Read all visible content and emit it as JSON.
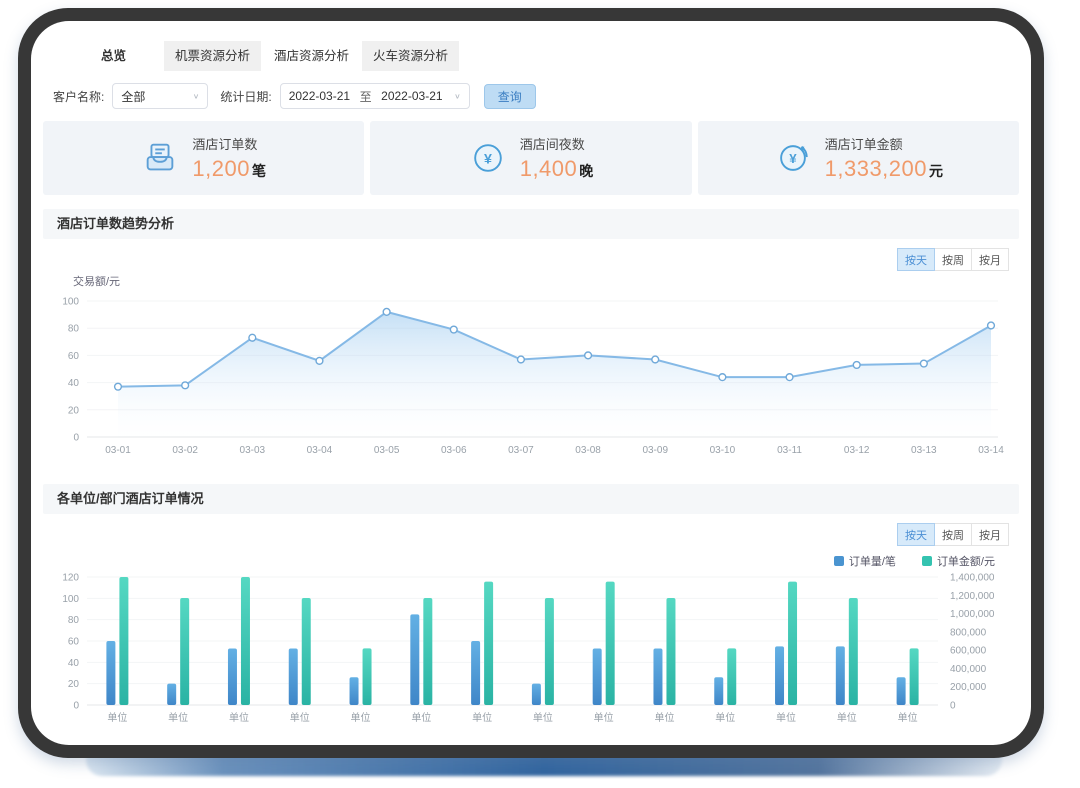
{
  "colors": {
    "accent_blue": "#4a94d0",
    "accent_teal": "#34c3b0",
    "value_orange": "#f09a6a",
    "button_blue_bg": "#bedcf4",
    "button_blue_text": "#3b7ec2",
    "toggle_active_bg": "#d7eafa",
    "card_bg": "#f1f4f8",
    "section_header_bg": "#f5f7f9",
    "frame_dark": "#373737"
  },
  "tabs": [
    {
      "label": "总览",
      "active": false
    },
    {
      "label": "机票资源分析",
      "active": false
    },
    {
      "label": "酒店资源分析",
      "active": true
    },
    {
      "label": "火车资源分析",
      "active": false
    }
  ],
  "filters": {
    "customer_label": "客户名称:",
    "customer_value": "全部",
    "date_label": "统计日期:",
    "date_start": "2022-03-21",
    "date_to": "至",
    "date_end": "2022-03-21",
    "search_button": "查询"
  },
  "stats": [
    {
      "icon": "order-book-icon",
      "title": "酒店订单数",
      "value": "1,200",
      "unit": "笔"
    },
    {
      "icon": "yen-circle-icon",
      "title": "酒店间夜数",
      "value": "1,400",
      "unit": "晚"
    },
    {
      "icon": "yen-refresh-icon",
      "title": "酒店订单金额",
      "value": "1,333,200",
      "unit": "元"
    }
  ],
  "sections": [
    {
      "title": "酒店订单数趋势分析",
      "toggles": [
        "按天",
        "按周",
        "按月"
      ],
      "active_toggle": "按天"
    },
    {
      "title": "各单位/部门酒店订单情况",
      "toggles": [
        "按天",
        "按周",
        "按月"
      ],
      "active_toggle": "按天",
      "legend": [
        {
          "label": "订单量/笔",
          "color": "#4a94d0"
        },
        {
          "label": "订单金额/元",
          "color": "#34c3b0"
        }
      ]
    }
  ],
  "chart_data": [
    {
      "type": "area",
      "title": "酒店订单数趋势分析",
      "ylabel": "交易额/元",
      "x": [
        "03-01",
        "03-02",
        "03-03",
        "03-04",
        "03-05",
        "03-06",
        "03-07",
        "03-08",
        "03-09",
        "03-10",
        "03-11",
        "03-12",
        "03-13",
        "03-14"
      ],
      "values": [
        37,
        38,
        73,
        56,
        92,
        79,
        57,
        60,
        57,
        44,
        44,
        53,
        54,
        82
      ],
      "ylim": [
        0,
        100
      ],
      "yticks": [
        0,
        20,
        40,
        60,
        80,
        100
      ],
      "grid": true,
      "line_color": "#85b9e6",
      "point_stroke": "#6fa8d8",
      "area_top": "rgba(150,198,238,0.55)",
      "area_bottom": "rgba(240,248,255,0.02)"
    },
    {
      "type": "bar",
      "title": "各单位/部门酒店订单情况",
      "categories": [
        "单位",
        "单位",
        "单位",
        "单位",
        "单位",
        "单位",
        "单位",
        "单位",
        "单位",
        "单位",
        "单位",
        "单位",
        "单位",
        "单位"
      ],
      "series": [
        {
          "name": "订单量/笔",
          "axis": "left",
          "color_top": "#63b0e4",
          "color_bottom": "#3f86c8",
          "values": [
            60,
            20,
            53,
            53,
            26,
            85,
            60,
            20,
            53,
            53,
            26,
            55,
            55,
            26
          ]
        },
        {
          "name": "订单金额/元",
          "axis": "right",
          "color_top": "#55d8c2",
          "color_bottom": "#2ab3a4",
          "values": [
            1400000,
            1170000,
            1400000,
            1170000,
            620000,
            1170000,
            1350000,
            1170000,
            1350000,
            1170000,
            620000,
            1350000,
            1170000,
            620000
          ]
        }
      ],
      "left_ylim": [
        0,
        120
      ],
      "left_yticks": [
        0,
        20,
        40,
        60,
        80,
        100,
        120
      ],
      "right_ylim": [
        0,
        1400000
      ],
      "right_ytick_labels": [
        "0",
        "200,000",
        "400,000",
        "600,000",
        "800,000",
        "1,000,000",
        "1,200,000",
        "1,400,000"
      ],
      "grid": true,
      "legend_position": "top-right"
    }
  ]
}
